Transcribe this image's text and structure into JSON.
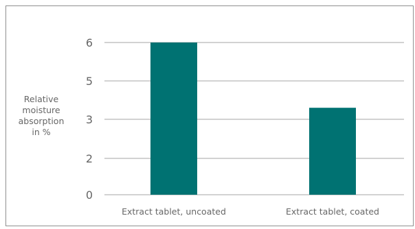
{
  "chart_data": {
    "type": "bar",
    "title": "",
    "xlabel": "",
    "ylabel": "Relative\nmoisture\nabsorption\nin %",
    "categories": [
      "Extract tablet, uncoated",
      "Extract tablet, coated"
    ],
    "values": [
      6,
      3.6
    ],
    "y_tick_labels": [
      "0",
      "2",
      "3",
      "5",
      "6"
    ],
    "grid": true,
    "legend": "none",
    "colors": {
      "bar": "#007272",
      "grid": "#a6a6a6",
      "text": "#666666",
      "frame": "#8f8f8f"
    }
  }
}
